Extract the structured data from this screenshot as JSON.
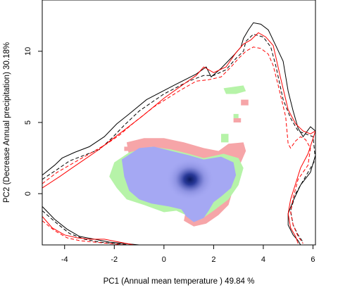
{
  "chart_data": {
    "type": "heatmap",
    "title": "",
    "xlabel": "PC1 (Annual mean temperature ) 49.84 %",
    "ylabel": "PC2 (Decrease Annual precipitation) 30.18%",
    "xlim": [
      -4.9,
      6.1
    ],
    "ylim": [
      -3.6,
      13.6
    ],
    "x_ticks": [
      "-4",
      "-2",
      "0",
      "2",
      "4",
      "6"
    ],
    "y_ticks": [
      "0",
      "5",
      "10"
    ],
    "grid": false,
    "legend": "none",
    "colors": {
      "red_only": "#f6a5a8",
      "green_only": "#b6f3a8",
      "overlap": "#a5a8f3",
      "density_core": "#0b1a60",
      "contour_black": "#000000",
      "contour_red": "#ff0000"
    },
    "regions": {
      "red_niche": [
        [
          -1.5,
          3.6
        ],
        [
          -0.8,
          3.9
        ],
        [
          0.0,
          3.9
        ],
        [
          0.8,
          3.6
        ],
        [
          1.6,
          3.2
        ],
        [
          2.2,
          3.0
        ],
        [
          2.6,
          3.5
        ],
        [
          3.2,
          3.6
        ],
        [
          3.3,
          3.0
        ],
        [
          3.0,
          1.8
        ],
        [
          2.8,
          0.4
        ],
        [
          2.6,
          -0.8
        ],
        [
          2.2,
          -1.5
        ],
        [
          1.7,
          -2.1
        ],
        [
          1.2,
          -2.3
        ],
        [
          0.8,
          -1.9
        ],
        [
          0.9,
          -1.0
        ],
        [
          0.4,
          -0.8
        ],
        [
          -0.4,
          -0.6
        ],
        [
          -1.0,
          -0.2
        ],
        [
          -1.3,
          0.6
        ],
        [
          -1.2,
          1.6
        ],
        [
          -1.4,
          2.6
        ]
      ],
      "green_niche": [
        [
          -2.0,
          2.2
        ],
        [
          -1.4,
          2.9
        ],
        [
          -0.5,
          3.3
        ],
        [
          0.3,
          3.1
        ],
        [
          1.0,
          2.8
        ],
        [
          1.6,
          2.5
        ],
        [
          2.4,
          2.8
        ],
        [
          3.0,
          2.5
        ],
        [
          3.2,
          1.8
        ],
        [
          3.0,
          0.6
        ],
        [
          2.6,
          -0.4
        ],
        [
          2.0,
          -1.2
        ],
        [
          1.5,
          -1.8
        ],
        [
          1.0,
          -1.6
        ],
        [
          0.5,
          -1.2
        ],
        [
          0.0,
          -1.3
        ],
        [
          -0.8,
          -0.8
        ],
        [
          -1.5,
          -0.4
        ],
        [
          -1.9,
          0.4
        ],
        [
          -2.2,
          1.2
        ]
      ],
      "overlap": [
        [
          -1.7,
          2.4
        ],
        [
          -1.0,
          3.2
        ],
        [
          -0.4,
          3.3
        ],
        [
          0.3,
          3.0
        ],
        [
          1.0,
          2.7
        ],
        [
          1.6,
          2.4
        ],
        [
          2.3,
          2.6
        ],
        [
          2.8,
          2.2
        ],
        [
          2.9,
          1.3
        ],
        [
          2.7,
          0.4
        ],
        [
          2.3,
          -0.2
        ],
        [
          2.0,
          -0.6
        ],
        [
          1.8,
          -1.2
        ],
        [
          1.6,
          -1.7
        ],
        [
          1.2,
          -2.0
        ],
        [
          0.9,
          -1.6
        ],
        [
          0.7,
          -1.1
        ],
        [
          0.2,
          -0.9
        ],
        [
          -0.5,
          -0.7
        ],
        [
          -1.0,
          -0.4
        ],
        [
          -1.4,
          0.2
        ],
        [
          -1.6,
          1.2
        ]
      ],
      "green_patches": [
        [
          [
            2.4,
            7.4
          ],
          [
            2.8,
            7.5
          ],
          [
            3.2,
            7.6
          ],
          [
            3.3,
            7.2
          ],
          [
            2.9,
            7.0
          ],
          [
            2.5,
            7.0
          ]
        ],
        [
          [
            2.8,
            5.6
          ],
          [
            3.0,
            5.6
          ],
          [
            3.0,
            5.3
          ],
          [
            2.8,
            5.3
          ]
        ],
        [
          [
            2.3,
            4.2
          ],
          [
            2.6,
            4.2
          ],
          [
            2.6,
            3.6
          ],
          [
            2.3,
            3.6
          ]
        ]
      ],
      "red_patches": [
        [
          [
            3.1,
            6.6
          ],
          [
            3.4,
            6.6
          ],
          [
            3.4,
            6.2
          ],
          [
            3.1,
            6.2
          ]
        ],
        [
          [
            2.8,
            5.3
          ],
          [
            3.1,
            5.3
          ],
          [
            3.1,
            5.0
          ],
          [
            2.8,
            5.0
          ]
        ],
        [
          [
            -1.6,
            3.3
          ],
          [
            -1.4,
            3.3
          ],
          [
            -1.4,
            3.0
          ],
          [
            -1.6,
            3.0
          ]
        ]
      ],
      "density_peak": [
        1.05,
        1.0
      ]
    },
    "series": [
      {
        "style": "black-solid",
        "x": [
          -4.9,
          -4.4,
          -4.1,
          -3.6,
          -3.0,
          -2.4,
          -1.9,
          -1.4,
          -0.7,
          0.5,
          1.3,
          1.7,
          1.9,
          2.3,
          2.8,
          3.1,
          3.2,
          3.4,
          3.6,
          3.9,
          4.2,
          4.5,
          4.8,
          5.0,
          5.2,
          5.4,
          5.6,
          5.9,
          6.1,
          6.1,
          5.9,
          5.5,
          5.2,
          5.0,
          5.0,
          5.2,
          5.4,
          5.5
        ],
        "y": [
          1.3,
          2.0,
          2.5,
          2.9,
          3.3,
          4.0,
          4.9,
          5.6,
          6.6,
          7.7,
          8.4,
          8.9,
          8.2,
          8.8,
          9.7,
          10.3,
          10.9,
          11.5,
          12.0,
          11.9,
          11.5,
          10.4,
          9.3,
          7.2,
          5.8,
          4.6,
          4.0,
          4.7,
          4.4,
          2.7,
          1.5,
          0.6,
          -0.5,
          -1.4,
          -2.2,
          -2.9,
          -3.3,
          -3.6
        ]
      },
      {
        "style": "black-dashed",
        "x": [
          -4.9,
          -4.3,
          -3.8,
          -3.2,
          -2.6,
          -2.1,
          -1.6,
          -1.0,
          0.0,
          1.0,
          1.6,
          2.0,
          2.5,
          2.9,
          3.2,
          3.3,
          3.6,
          4.0,
          4.3,
          4.5,
          4.8,
          5.1,
          5.4,
          5.7,
          6.0,
          6.1,
          5.7,
          5.3,
          5.1,
          5.2,
          5.4,
          5.6
        ],
        "y": [
          1.0,
          1.7,
          2.3,
          2.7,
          3.1,
          3.9,
          4.8,
          5.8,
          7.0,
          7.9,
          8.3,
          8.3,
          8.7,
          9.5,
          10.0,
          10.7,
          11.2,
          11.0,
          10.3,
          9.0,
          6.6,
          5.3,
          4.4,
          4.2,
          4.0,
          2.4,
          1.2,
          0.0,
          -1.2,
          -2.2,
          -2.9,
          -3.4
        ]
      },
      {
        "style": "red-solid",
        "x": [
          -4.9,
          -4.2,
          -3.7,
          -3.2,
          -2.7,
          -2.1,
          -1.5,
          -0.9,
          0.0,
          0.8,
          1.3,
          1.6,
          2.0,
          2.5,
          2.9,
          3.2,
          3.5,
          3.8,
          4.1,
          4.4,
          4.7,
          5.0,
          5.3,
          5.6,
          5.9,
          6.1,
          5.8,
          5.5,
          5.3,
          5.1,
          5.0,
          5.1,
          5.3,
          5.4
        ],
        "y": [
          0.4,
          1.2,
          1.8,
          2.4,
          3.0,
          3.8,
          4.6,
          5.4,
          6.7,
          7.7,
          8.3,
          8.9,
          8.5,
          8.9,
          9.9,
          10.5,
          10.8,
          11.3,
          11.0,
          10.4,
          8.1,
          5.9,
          4.9,
          4.4,
          4.2,
          4.4,
          2.8,
          1.8,
          0.7,
          -0.4,
          -1.4,
          -2.4,
          -3.0,
          -3.5
        ]
      },
      {
        "style": "red-dashed",
        "x": [
          -4.9,
          -4.3,
          -3.8,
          -3.3,
          -2.8,
          -2.3,
          -1.8,
          -1.2,
          -0.4,
          0.6,
          1.3,
          1.8,
          2.3,
          2.7,
          3.0,
          3.3,
          3.6,
          3.9,
          4.2,
          4.4,
          4.6,
          4.9,
          5.0,
          5.1,
          5.3,
          5.5,
          5.7,
          5.9,
          5.8,
          5.4,
          5.2,
          5.1,
          5.2,
          5.4,
          5.6
        ],
        "y": [
          0.7,
          1.5,
          2.0,
          2.5,
          3.0,
          3.5,
          4.1,
          5.0,
          6.1,
          7.2,
          7.9,
          8.0,
          8.2,
          8.9,
          9.5,
          10.0,
          10.3,
          10.2,
          9.8,
          9.0,
          7.6,
          5.4,
          3.5,
          3.2,
          3.7,
          4.0,
          3.8,
          3.2,
          2.0,
          1.0,
          -0.3,
          -1.3,
          -2.2,
          -3.0,
          -3.5
        ]
      },
      {
        "style": "black-solid",
        "x": [
          -4.9,
          -4.4,
          -3.9,
          -3.4,
          -2.8,
          -2.2,
          -1.6,
          -1.0,
          -0.6
        ],
        "y": [
          -0.9,
          -1.8,
          -2.5,
          -3.0,
          -3.2,
          -3.4,
          -3.5,
          -3.6,
          -3.6
        ]
      },
      {
        "style": "black-dashed",
        "x": [
          -4.9,
          -4.3,
          -3.8,
          -3.2,
          -2.6,
          -2.0,
          -1.4,
          -0.8,
          -0.3
        ],
        "y": [
          -1.2,
          -2.1,
          -2.8,
          -3.2,
          -3.4,
          -3.5,
          -3.6,
          -3.6,
          -3.6
        ]
      },
      {
        "style": "red-solid",
        "x": [
          -4.9,
          -4.5,
          -4.0,
          -3.5,
          -3.0,
          -2.4,
          -1.8,
          -1.2
        ],
        "y": [
          -1.6,
          -2.4,
          -2.9,
          -3.1,
          -3.2,
          -3.2,
          -3.4,
          -3.6
        ]
      },
      {
        "style": "red-dashed",
        "x": [
          -4.9,
          -4.4,
          -3.9,
          -3.4,
          -2.8,
          -2.2,
          -1.6,
          -1.0
        ],
        "y": [
          -1.9,
          -2.6,
          -3.1,
          -3.3,
          -3.4,
          -3.5,
          -3.6,
          -3.6
        ]
      }
    ]
  }
}
